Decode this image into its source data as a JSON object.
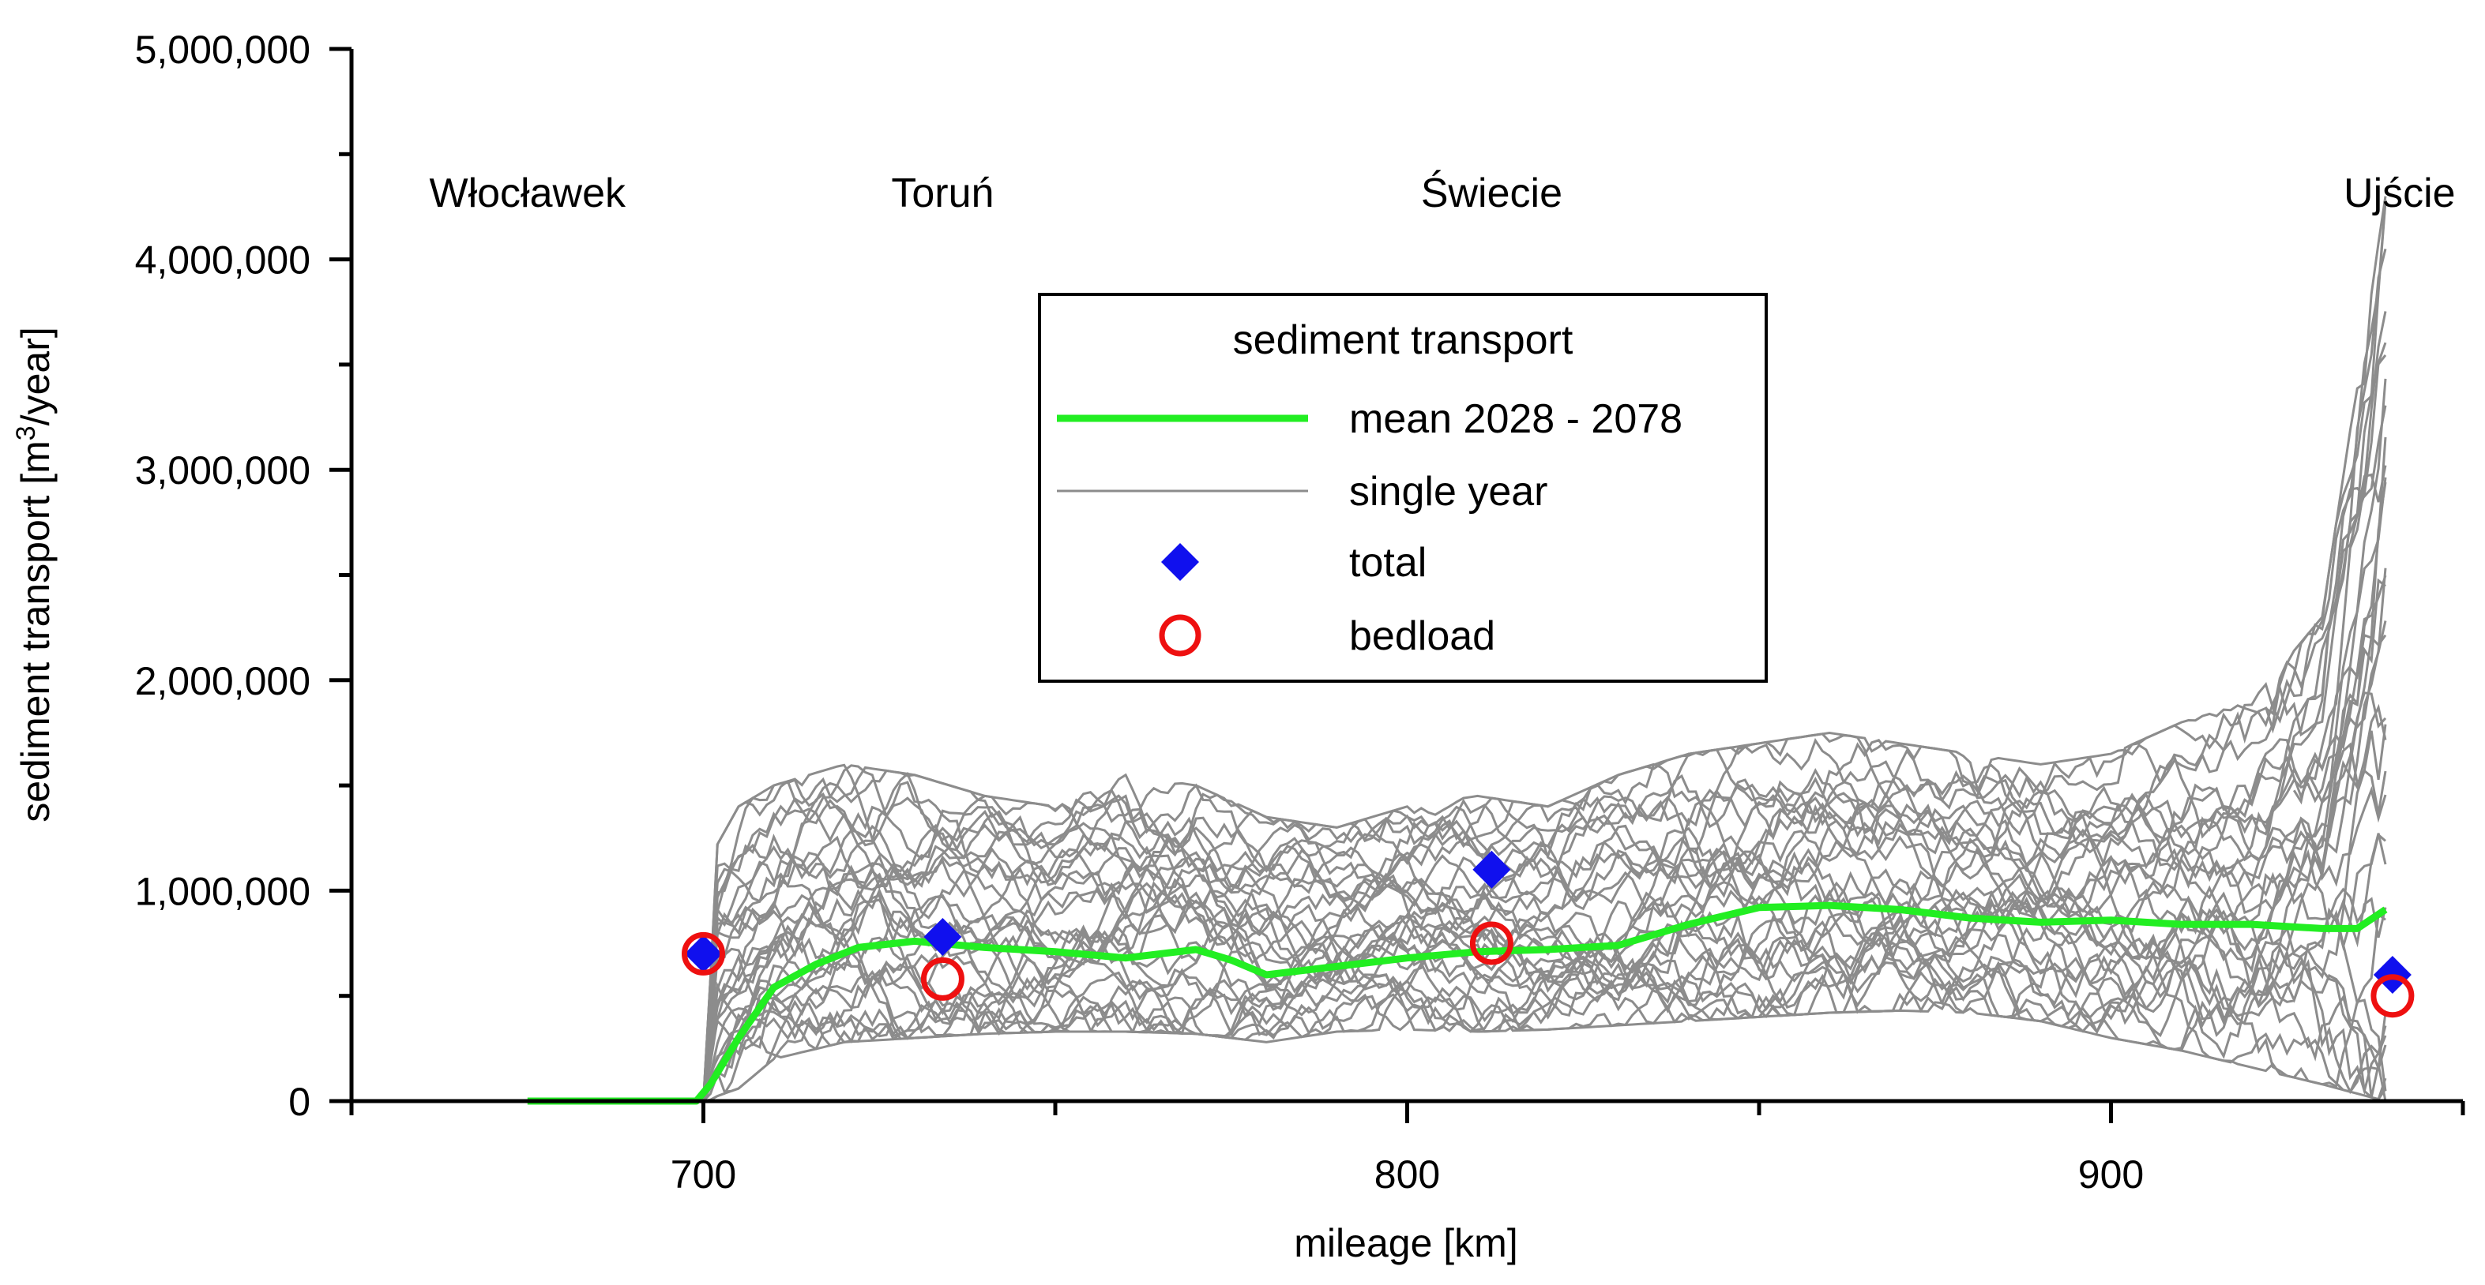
{
  "chart_data": {
    "type": "line",
    "xlabel": "mileage [km]",
    "ylabel_main": "sediment transport [m",
    "ylabel_sup": "3",
    "ylabel_tail": "/year]",
    "xlim": [
      650,
      950
    ],
    "ylim": [
      0,
      5000000
    ],
    "x_ticks": [
      700,
      800,
      900
    ],
    "x_tick_labels": [
      "700",
      "800",
      "900"
    ],
    "x_minor_ticks": [
      650,
      750,
      850,
      950
    ],
    "y_ticks": [
      0,
      1000000,
      2000000,
      3000000,
      4000000,
      5000000
    ],
    "y_tick_labels": [
      "0",
      "1,000,000",
      "2,000,000",
      "3,000,000",
      "4,000,000",
      "5,000,000"
    ],
    "y_minor_ticks": [
      500000,
      1500000,
      2500000,
      3500000,
      4500000
    ],
    "locations": [
      {
        "name": "Włocławek",
        "km": 675
      },
      {
        "name": "Toruń",
        "km": 734
      },
      {
        "name": "Świecie",
        "km": 812
      },
      {
        "name": "Ujście",
        "km": 941
      }
    ],
    "legend": {
      "title": "sediment transport",
      "mean_label": "mean 2028 - 2078",
      "single_label": "single year",
      "total_label": "total",
      "bedload_label": "bedload"
    },
    "colors": {
      "mean": "#22ee22",
      "single": "#8c8c8c",
      "total": "#1010ee",
      "bedload": "#ee1010"
    },
    "mean_series": {
      "name": "mean 2028 - 2078",
      "x": [
        675,
        699,
        701,
        705,
        710,
        716,
        722,
        730,
        740,
        750,
        760,
        770,
        775,
        780,
        790,
        800,
        810,
        820,
        830,
        840,
        850,
        860,
        870,
        880,
        890,
        900,
        910,
        920,
        930,
        935,
        939
      ],
      "y": [
        0,
        0,
        80000,
        300000,
        540000,
        650000,
        730000,
        760000,
        730000,
        710000,
        680000,
        720000,
        670000,
        600000,
        640000,
        680000,
        710000,
        720000,
        740000,
        840000,
        920000,
        930000,
        910000,
        870000,
        850000,
        860000,
        840000,
        840000,
        820000,
        820000,
        910000
      ]
    },
    "single_year_bands": {
      "x": [
        700,
        705,
        710,
        720,
        730,
        740,
        750,
        760,
        770,
        780,
        790,
        800,
        810,
        820,
        830,
        840,
        850,
        860,
        870,
        880,
        890,
        900,
        910,
        920,
        930,
        939
      ],
      "low": [
        0,
        60000,
        200000,
        280000,
        300000,
        320000,
        330000,
        330000,
        320000,
        280000,
        330000,
        340000,
        330000,
        340000,
        360000,
        380000,
        400000,
        420000,
        430000,
        420000,
        380000,
        300000,
        240000,
        160000,
        80000,
        0
      ],
      "high": [
        1100000,
        1400000,
        1500000,
        1600000,
        1550000,
        1450000,
        1400000,
        1550000,
        1500000,
        1350000,
        1300000,
        1400000,
        1450000,
        1400000,
        1550000,
        1650000,
        1700000,
        1750000,
        1700000,
        1650000,
        1600000,
        1650000,
        1800000,
        1900000,
        2300000,
        4300000
      ]
    },
    "total": {
      "name": "total",
      "x": [
        700,
        734,
        812,
        940
      ],
      "y": [
        700000,
        780000,
        1100000,
        600000
      ]
    },
    "bedload": {
      "name": "bedload",
      "x": [
        700,
        734,
        812,
        940
      ],
      "y": [
        700000,
        580000,
        750000,
        500000
      ]
    }
  }
}
